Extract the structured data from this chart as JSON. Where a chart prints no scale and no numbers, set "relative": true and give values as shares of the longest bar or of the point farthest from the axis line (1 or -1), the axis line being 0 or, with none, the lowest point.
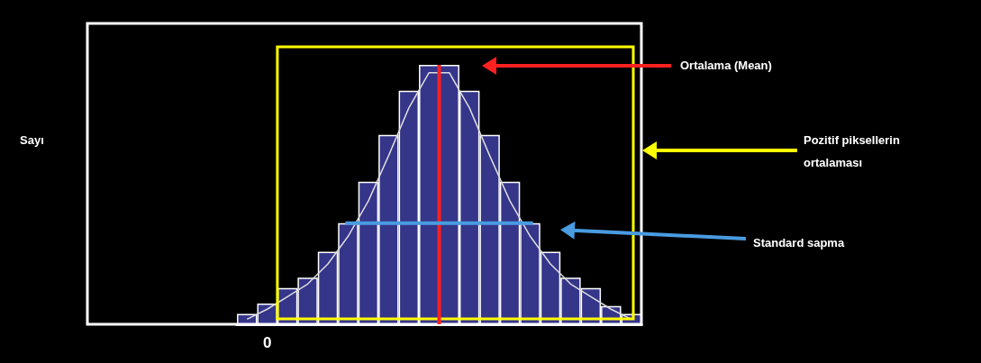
{
  "chart_data": [
    {
      "type": "bar",
      "relative": true,
      "color": "#35358a",
      "categories": [
        null,
        null,
        null,
        null,
        null,
        null,
        null,
        null,
        null,
        null,
        null,
        null,
        null,
        null,
        null,
        null,
        null,
        null,
        null,
        null
      ],
      "values": [
        0.04,
        0.08,
        0.14,
        0.18,
        0.28,
        0.39,
        0.55,
        0.73,
        0.9,
        1,
        1,
        0.9,
        0.73,
        0.55,
        0.39,
        0.28,
        0.18,
        0.14,
        0.07,
        0.04
      ],
      "annotations": [
        "Ortalama (Mean)",
        "Pozitif piksellerin ortalaması",
        "Standard sapma",
        "Sayı",
        "0"
      ]
    },
    {
      "type": "line",
      "relative": true,
      "color": "#dddddd",
      "marker": "none",
      "categories": [
        null,
        null,
        null,
        null,
        null,
        null,
        null,
        null,
        null,
        null,
        null,
        null,
        null,
        null,
        null,
        null,
        null,
        null,
        null,
        null
      ],
      "values": [
        0.02,
        0.06,
        0.11,
        0.16,
        0.24,
        0.35,
        0.49,
        0.67,
        0.86,
        1,
        1,
        0.86,
        0.67,
        0.49,
        0.35,
        0.24,
        0.16,
        0.11,
        0.06,
        0.02
      ]
    }
  ]
}
